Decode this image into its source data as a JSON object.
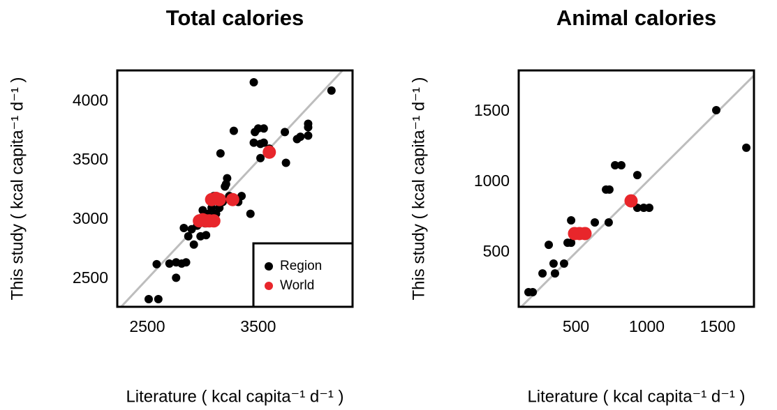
{
  "chart_data": [
    {
      "type": "scatter",
      "title": "Total calories",
      "x_label": "Literature ( kcal capita⁻¹ d⁻¹ )",
      "y_label": "This study ( kcal capita⁻¹ d⁻¹ )",
      "xlim": [
        2230,
        4350
      ],
      "ylim": [
        2265,
        4260
      ],
      "xticks": [
        2500,
        3500
      ],
      "yticks": [
        2500,
        3000,
        3500,
        4000
      ],
      "identity_line": true,
      "identity_color": "#bdbdbd",
      "legend": "bottomright",
      "series": [
        {
          "name": "Region",
          "color": "#000000",
          "x": [
            2513,
            2600,
            2585,
            2700,
            2760,
            2810,
            2850,
            2760,
            2830,
            2870,
            2920,
            2900,
            2950,
            2980,
            3000,
            3020,
            3030,
            3050,
            3060,
            3080,
            3100,
            3120,
            3150,
            3160,
            3180,
            3200,
            3210,
            3220,
            3240,
            3260,
            3280,
            3320,
            3350,
            3430,
            3460,
            3470,
            3460,
            3500,
            3520,
            3550,
            3550,
            3520,
            3600,
            3740,
            3750,
            3850,
            3880,
            3950,
            3950,
            3950,
            4160
          ],
          "values": [
            2330,
            2330,
            2625,
            2630,
            2640,
            2630,
            2640,
            2510,
            2930,
            2860,
            2790,
            2920,
            2950,
            2860,
            3080,
            2970,
            2870,
            3050,
            3000,
            3100,
            3200,
            3050,
            3100,
            3560,
            3150,
            3280,
            3300,
            3350,
            3200,
            3170,
            3750,
            3150,
            3200,
            3050,
            4160,
            3740,
            3650,
            3770,
            3640,
            3770,
            3650,
            3520,
            3600,
            3740,
            3480,
            3680,
            3700,
            3810,
            3780,
            3710,
            4090
          ]
        },
        {
          "name": "World",
          "color": "#e8262b",
          "x": [
            2970,
            3000,
            3030,
            3060,
            3100,
            3080,
            3120,
            3150,
            3270,
            3600
          ],
          "values": [
            2990,
            3000,
            2990,
            2990,
            2990,
            3170,
            3180,
            3170,
            3170,
            3570
          ]
        }
      ]
    },
    {
      "type": "scatter",
      "title": "Animal calories",
      "x_label": "Literature ( kcal capita⁻¹ d⁻¹ )",
      "y_label": "This study ( kcal capita⁻¹ d⁻¹ )",
      "xlim": [
        96,
        1756
      ],
      "ylim": [
        114,
        1792
      ],
      "xticks": [
        500,
        1000,
        1500
      ],
      "yticks": [
        500,
        1000,
        1500
      ],
      "identity_line": true,
      "identity_color": "#bdbdbd",
      "series": [
        {
          "color": "#000000",
          "x": [
            165,
            195,
            264,
            308,
            342,
            352,
            416,
            441,
            466,
            466,
            633,
            712,
            736,
            731,
            776,
            820,
            933,
            933,
            978,
            1017,
            1490,
            1702
          ],
          "values": [
            218,
            218,
            351,
            554,
            421,
            351,
            421,
            569,
            569,
            728,
            713,
            946,
            946,
            713,
            1119,
            1119,
            1049,
            817,
            817,
            817,
            1510,
            1243
          ]
        },
        {
          "color": "#e8262b",
          "x": [
            490,
            525,
            564,
            889
          ],
          "values": [
            634,
            634,
            634,
            866
          ]
        }
      ]
    }
  ]
}
